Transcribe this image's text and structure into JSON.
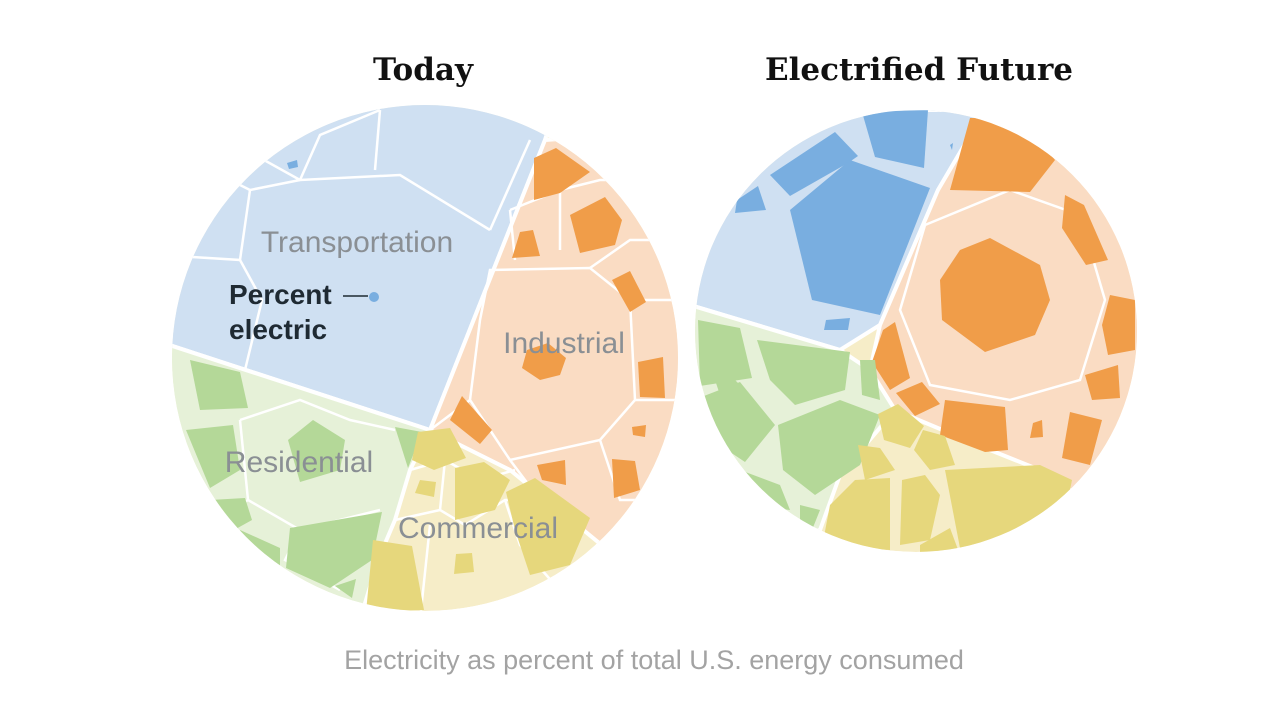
{
  "chart_data": {
    "type": "voronoi-treemap",
    "caption": "Electricity as percent of total U.S. energy consumed",
    "annotation": {
      "line1": "Percent",
      "line2": "electric"
    },
    "sectors": [
      {
        "name": "Transportation",
        "color": "#cfe0f2",
        "electric_color": "#79aee0"
      },
      {
        "name": "Industrial",
        "color": "#fadcc3",
        "electric_color": "#f09d49"
      },
      {
        "name": "Residential",
        "color": "#e6f1d8",
        "electric_color": "#b4d898"
      },
      {
        "name": "Commercial",
        "color": "#f6edc8",
        "electric_color": "#e6d77c"
      }
    ],
    "panels": [
      {
        "title": "Today",
        "shows_labels": true
      },
      {
        "title": "Electrified Future",
        "shows_labels": false
      }
    ]
  }
}
